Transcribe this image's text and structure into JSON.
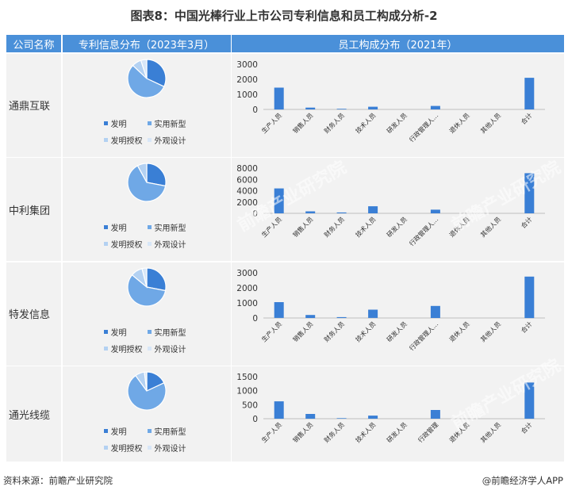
{
  "title": "图表8：中国光棒行业上市公司专利信息和员工构成分析-2",
  "headers": {
    "company": "公司名称",
    "patent": "专利信息分布（2023年3月）",
    "staff": "员工构成分布（2021年）"
  },
  "legend_labels": [
    "发明",
    "实用新型",
    "发明授权",
    "外观设计"
  ],
  "footer": {
    "source": "资料来源：前瞻产业研究院",
    "brand": "@前瞻经济学人APP"
  },
  "watermark": "前瞻产业研究院",
  "colors": {
    "invention": "#3a7fd5",
    "utility": "#6fa8e6",
    "granted": "#b3d1f2",
    "design": "#d8e7f8",
    "bar": "#3a7fd5",
    "header": "#4a90d9"
  },
  "chart_data": [
    {
      "type": "pie",
      "company": "通鼎互联",
      "labels": [
        "发明",
        "实用新型",
        "发明授权",
        "外观设计"
      ],
      "values": [
        32,
        55,
        8,
        5
      ]
    },
    {
      "type": "bar",
      "company": "通鼎互联",
      "categories": [
        "生产人员",
        "销售人员",
        "财务人员",
        "技术人员",
        "研发人员",
        "行政管理人员",
        "退休人员",
        "其他人员",
        "合计"
      ],
      "category_labels": [
        "生产人员",
        "销售人员",
        "财务人员",
        "技术人员",
        "研发人员",
        "行政管理人...",
        "退休人员",
        "其他人员",
        "合计"
      ],
      "values": [
        1450,
        120,
        40,
        180,
        0,
        230,
        0,
        0,
        2100
      ],
      "ylim": [
        0,
        3000
      ],
      "yticks": [
        "0",
        "1000",
        "2000",
        "3000"
      ]
    },
    {
      "type": "pie",
      "company": "中利集团",
      "labels": [
        "发明",
        "实用新型",
        "发明授权",
        "外观设计"
      ],
      "values": [
        28,
        64,
        8,
        0
      ]
    },
    {
      "type": "bar",
      "company": "中利集团",
      "categories": [
        "生产人员",
        "销售人员",
        "财务人员",
        "技术人员",
        "研发人员",
        "行政管理人员",
        "退休人员",
        "其他人员",
        "合计"
      ],
      "category_labels": [
        "生产人员",
        "销售人员",
        "财务人员",
        "技术人员",
        "研发人员",
        "行政管理人...",
        "退休人员",
        "其他人员",
        "合计"
      ],
      "values": [
        4400,
        350,
        150,
        1250,
        0,
        650,
        0,
        0,
        7100
      ],
      "ylim": [
        0,
        8000
      ],
      "yticks": [
        "0",
        "2000",
        "4000",
        "6000",
        "8000"
      ]
    },
    {
      "type": "pie",
      "company": "特发信息",
      "labels": [
        "发明",
        "实用新型",
        "发明授权",
        "外观设计"
      ],
      "values": [
        28,
        58,
        10,
        4
      ]
    },
    {
      "type": "bar",
      "company": "特发信息",
      "categories": [
        "生产人员",
        "销售人员",
        "财务人员",
        "技术人员",
        "研发人员",
        "行政管理人员",
        "退休人员",
        "其他人员",
        "合计"
      ],
      "category_labels": [
        "生产人员",
        "销售人员",
        "财务人员",
        "技术人员",
        "研发人员",
        "行政管理人...",
        "退休人员",
        "其他人员",
        "合计"
      ],
      "values": [
        1050,
        200,
        60,
        550,
        0,
        800,
        0,
        0,
        2750
      ],
      "ylim": [
        0,
        3000
      ],
      "yticks": [
        "0",
        "1000",
        "2000",
        "3000"
      ]
    },
    {
      "type": "pie",
      "company": "通光线缆",
      "labels": [
        "发明",
        "实用新型",
        "发明授权",
        "外观设计"
      ],
      "values": [
        18,
        72,
        8,
        2
      ]
    },
    {
      "type": "bar",
      "company": "通光线缆",
      "categories": [
        "生产人员",
        "销售人员",
        "财务人员",
        "技术人员",
        "研发人员",
        "行政管理",
        "退休人员",
        "其他人员",
        "合计"
      ],
      "category_labels": [
        "生产人员",
        "销售人员",
        "财务人员",
        "技术人员",
        "研发人员",
        "行政管理",
        "退休人员",
        "其他人员",
        "合计"
      ],
      "values": [
        620,
        170,
        20,
        110,
        0,
        310,
        0,
        0,
        1290
      ],
      "ylim": [
        0,
        1500
      ],
      "yticks": [
        "0",
        "500",
        "1000",
        "1500"
      ]
    }
  ]
}
